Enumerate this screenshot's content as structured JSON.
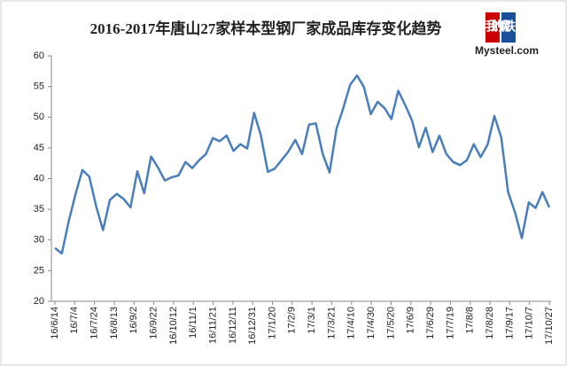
{
  "chart_data": {
    "type": "line",
    "title": "2016-2017年唐山27家样本型钢厂家成品库存变化趋势",
    "logo": {
      "top": "我的钢铁",
      "bottom": "Mysteel.com"
    },
    "xticks": [
      "16/6/14",
      "16/7/4",
      "16/7/24",
      "16/8/13",
      "16/9/2",
      "16/9/22",
      "16/10/12",
      "16/11/1",
      "16/11/21",
      "16/12/11",
      "16/12/31",
      "17/1/20",
      "17/2/9",
      "17/3/1",
      "17/3/21",
      "17/4/10",
      "17/4/30",
      "17/5/20",
      "17/6/9",
      "17/6/29",
      "17/7/19",
      "17/8/8",
      "17/8/28",
      "17/9/17",
      "17/10/7",
      "17/10/27"
    ],
    "values": [
      28.7,
      27.8,
      33,
      37.5,
      41.4,
      40.3,
      35.5,
      31.6,
      36.5,
      37.5,
      36.7,
      35.3,
      41.2,
      37.6,
      43.6,
      41.8,
      39.7,
      40.2,
      40.5,
      42.7,
      41.7,
      43.0,
      44.0,
      46.6,
      46.1,
      47.0,
      44.5,
      45.6,
      44.9,
      50.7,
      47.0,
      41.1,
      41.6,
      43.0,
      44.4,
      46.3,
      44.0,
      48.8,
      49.0,
      44.0,
      41.0,
      48.1,
      51.5,
      55.3,
      56.8,
      54.9,
      50.5,
      52.5,
      51.5,
      49.7,
      54.3,
      52.0,
      49.5,
      45.1,
      48.3,
      44.3,
      47.0,
      44.0,
      42.7,
      42.2,
      43.0,
      45.6,
      43.5,
      45.5,
      50.2,
      46.7,
      37.8,
      34.5,
      30.3,
      36.1,
      35.2,
      37.8,
      35.3
    ],
    "color": "#4a7ebb",
    "ylim": [
      20,
      60
    ],
    "yticks": [
      20,
      25,
      30,
      35,
      40,
      45,
      50,
      55,
      60
    ],
    "grid": false
  }
}
